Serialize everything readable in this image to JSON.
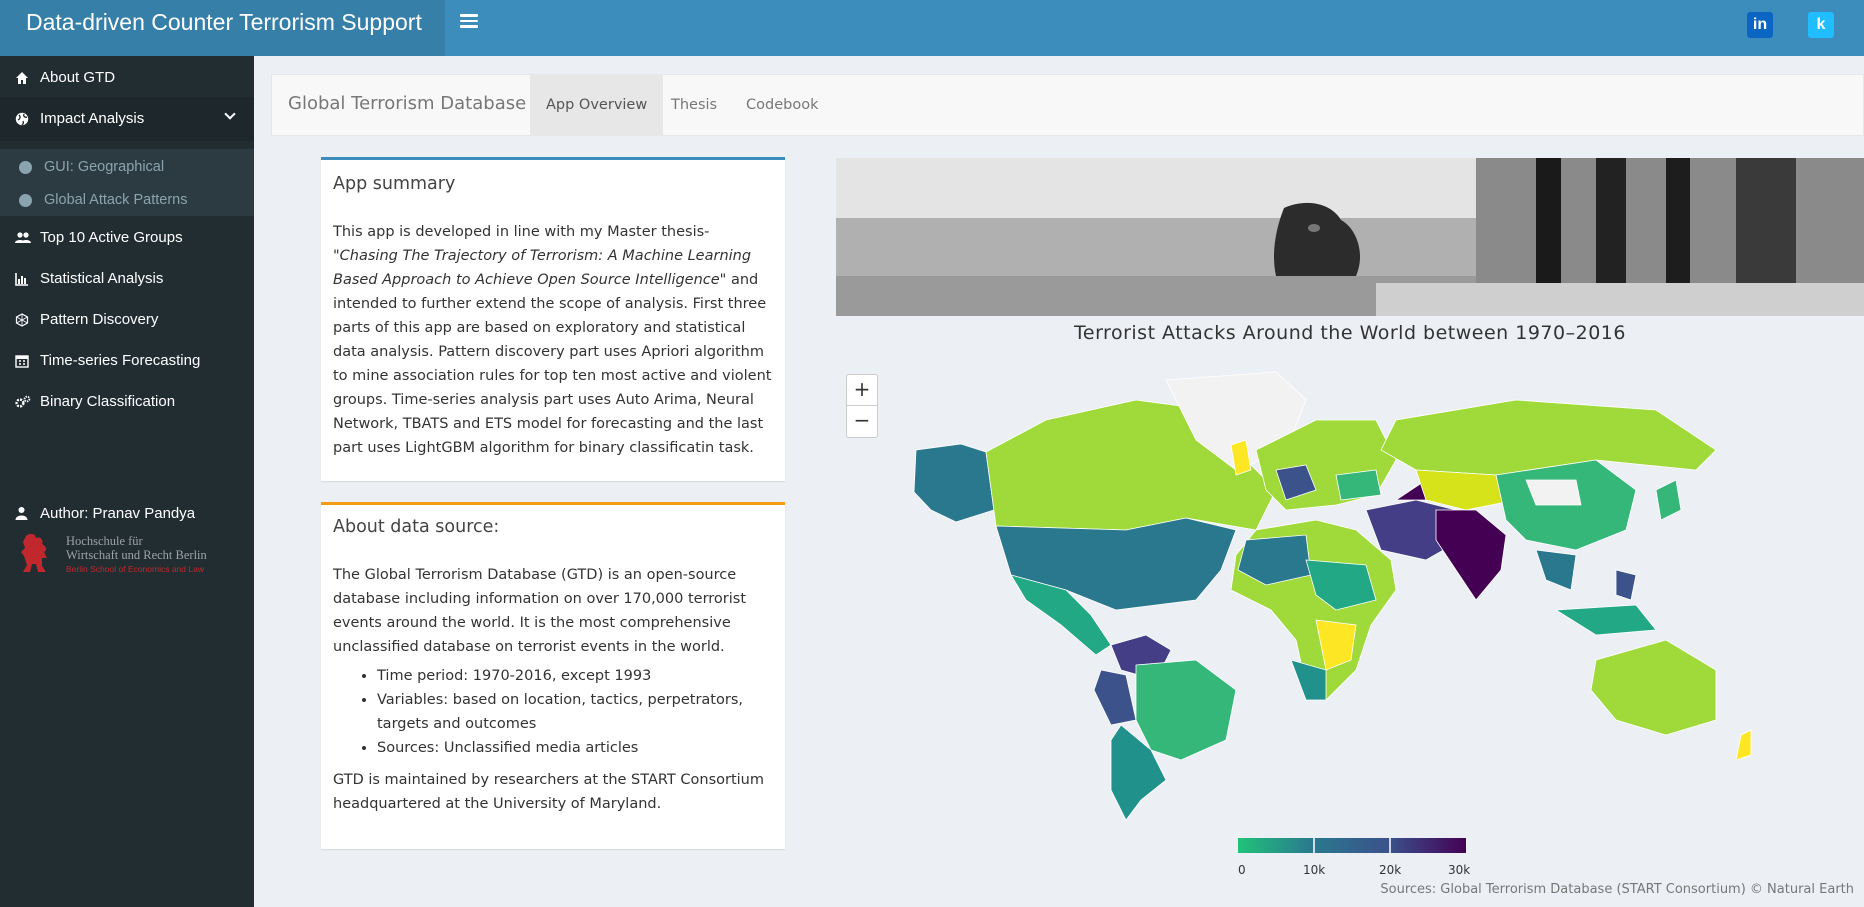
{
  "header": {
    "title": "Data-driven Counter Terrorism Support",
    "menu_icon": "hamburger-icon",
    "social": [
      {
        "name": "linkedin",
        "glyph": "in",
        "color": "#0a66c2"
      },
      {
        "name": "kaggle",
        "glyph": "k",
        "color": "#20beff"
      }
    ]
  },
  "sidebar": {
    "items": [
      {
        "label": "About GTD",
        "icon": "home-icon"
      },
      {
        "label": "Impact Analysis",
        "icon": "globe-icon"
      },
      {
        "label": "Top 10 Active Groups",
        "icon": "users-icon"
      },
      {
        "label": "Statistical Analysis",
        "icon": "bar-chart-icon"
      },
      {
        "label": "Pattern Discovery",
        "icon": "connectdevelop-icon"
      },
      {
        "label": "Time-series Forecasting",
        "icon": "calendar-icon"
      },
      {
        "label": "Binary Classification",
        "icon": "cogs-icon"
      }
    ],
    "subitems": [
      {
        "label": "GUI: Geographical",
        "icon": "globe-icon"
      },
      {
        "label": "Global Attack Patterns",
        "icon": "globe-icon"
      }
    ],
    "author": "Author: Pranav Pandya",
    "logo": {
      "line1": "Hochschule für",
      "line2": "Wirtschaft und Recht Berlin",
      "line3": "Berlin School of Economics and Law"
    }
  },
  "navbar": {
    "brand": "Global Terrorism Database",
    "tabs": [
      "App Overview",
      "Thesis",
      "Codebook"
    ],
    "active_tab": "App Overview"
  },
  "summary": {
    "title": "App summary",
    "p1_pre": "This app is developed in line with my Master thesis- ",
    "p1_italic": "\"Chasing The Trajectory of Terrorism: A Machine Learning Based Approach to Achieve Open Source Intelligence\"",
    "p1_post": " and intended to further extend the scope of analysis. First three parts of this app are based on exploratory and statistical data analysis. Pattern discovery part uses Apriori algorithm to mine association rules for top ten most active and violent groups. Time-series analysis part uses Auto Arima, Neural Network, TBATS and ETS model for forecasting and the last part uses LightGBM algorithm for binary classificatin task.",
    "accent": "#3c8dbc"
  },
  "source_box": {
    "title": "About data source:",
    "p1": "The Global Terrorism Database (GTD) is an open-source database including information on over 170,000 terrorist events around the world. It is the most comprehensive unclassified database on terrorist events in the world.",
    "bullets": [
      "Time period: 1970-2016, except 1993",
      "Variables: based on location, tactics, perpetrators, targets and outcomes",
      "Sources: Unclassified media articles"
    ],
    "p2": "GTD is maintained by researchers at the START Consortium headquartered at the University of Maryland.",
    "accent": "#f39c12"
  },
  "map": {
    "title": "Terrorist Attacks Around the World between 1970–2016",
    "zoom_in": "+",
    "zoom_out": "−",
    "legend_ticks": [
      "0",
      "10k",
      "20k",
      "30k"
    ],
    "legend_colors": [
      "#21c27a",
      "#2a788e",
      "#3b528b",
      "#440154"
    ],
    "attribution": "Sources: Global Terrorism Database (START Consortium) © Natural Earth"
  }
}
